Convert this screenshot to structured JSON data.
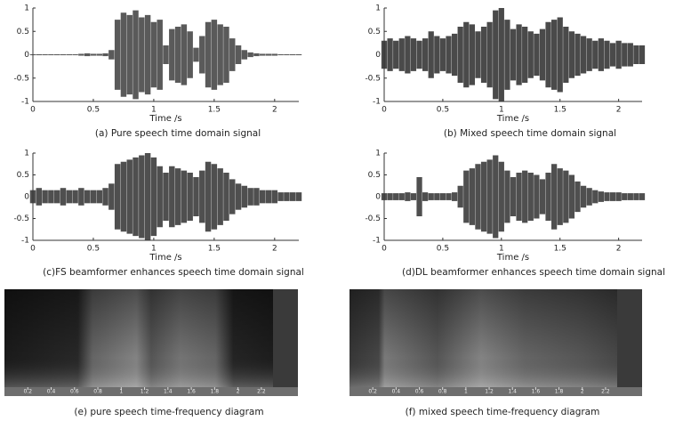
{
  "chart_data": [
    {
      "type": "waveform",
      "caption": "(a) Pure speech time domain signal",
      "xlabel": "Time /s",
      "color": "#5a5a5a",
      "xlim": [
        0,
        2.2
      ],
      "ylim": [
        -1,
        1
      ],
      "xticks": [
        0,
        0.5,
        1,
        1.5,
        2
      ],
      "yticks": [
        1,
        0.5,
        0,
        -0.5,
        -1
      ],
      "x": [
        0,
        0.05,
        0.1,
        0.15,
        0.2,
        0.25,
        0.3,
        0.35,
        0.4,
        0.45,
        0.5,
        0.55,
        0.6,
        0.65,
        0.7,
        0.75,
        0.8,
        0.85,
        0.9,
        0.95,
        1,
        1.05,
        1.1,
        1.15,
        1.2,
        1.25,
        1.3,
        1.35,
        1.4,
        1.45,
        1.5,
        1.55,
        1.6,
        1.65,
        1.7,
        1.75,
        1.8,
        1.85,
        1.9,
        1.95,
        2,
        2.05,
        2.1,
        2.15,
        2.2
      ],
      "values": [
        0.01,
        0.01,
        0.01,
        0.01,
        0.01,
        0.01,
        0.01,
        0.01,
        0.02,
        0.03,
        0.02,
        0.02,
        0.03,
        0.1,
        0.75,
        0.9,
        0.85,
        0.95,
        0.8,
        0.85,
        0.7,
        0.75,
        0.2,
        0.55,
        0.6,
        0.65,
        0.5,
        0.15,
        0.4,
        0.7,
        0.75,
        0.65,
        0.6,
        0.35,
        0.2,
        0.1,
        0.05,
        0.03,
        0.02,
        0.02,
        0.02,
        0.01,
        0.01,
        0.01,
        0.01
      ]
    },
    {
      "type": "waveform",
      "caption": "(b)  Mixed speech time domain signal",
      "xlabel": "Time /s",
      "color": "#4a4a4a",
      "xlim": [
        0,
        2.2
      ],
      "ylim": [
        -1,
        1
      ],
      "xticks": [
        0,
        0.5,
        1,
        1.5,
        2
      ],
      "yticks": [
        1,
        0.5,
        0,
        -0.5,
        -1
      ],
      "x": [
        0,
        0.05,
        0.1,
        0.15,
        0.2,
        0.25,
        0.3,
        0.35,
        0.4,
        0.45,
        0.5,
        0.55,
        0.6,
        0.65,
        0.7,
        0.75,
        0.8,
        0.85,
        0.9,
        0.95,
        1,
        1.05,
        1.1,
        1.15,
        1.2,
        1.25,
        1.3,
        1.35,
        1.4,
        1.45,
        1.5,
        1.55,
        1.6,
        1.65,
        1.7,
        1.75,
        1.8,
        1.85,
        1.9,
        1.95,
        2,
        2.05,
        2.1,
        2.15,
        2.2
      ],
      "values": [
        0.3,
        0.35,
        0.3,
        0.35,
        0.4,
        0.35,
        0.3,
        0.35,
        0.5,
        0.4,
        0.35,
        0.4,
        0.45,
        0.6,
        0.7,
        0.65,
        0.5,
        0.6,
        0.7,
        0.95,
        1,
        0.75,
        0.55,
        0.65,
        0.6,
        0.5,
        0.45,
        0.55,
        0.7,
        0.75,
        0.8,
        0.6,
        0.5,
        0.45,
        0.4,
        0.35,
        0.3,
        0.35,
        0.3,
        0.25,
        0.3,
        0.25,
        0.25,
        0.2,
        0.2
      ]
    },
    {
      "type": "waveform",
      "caption": "(c)FS beamformer enhances speech time domain signal",
      "xlabel": "Time /s",
      "color": "#4f4f4f",
      "xlim": [
        0,
        2.2
      ],
      "ylim": [
        -1,
        1
      ],
      "xticks": [
        0,
        0.5,
        1,
        1.5,
        2
      ],
      "yticks": [
        1,
        0.5,
        0,
        -0.5,
        -1
      ],
      "x": [
        0,
        0.05,
        0.1,
        0.15,
        0.2,
        0.25,
        0.3,
        0.35,
        0.4,
        0.45,
        0.5,
        0.55,
        0.6,
        0.65,
        0.7,
        0.75,
        0.8,
        0.85,
        0.9,
        0.95,
        1,
        1.05,
        1.1,
        1.15,
        1.2,
        1.25,
        1.3,
        1.35,
        1.4,
        1.45,
        1.5,
        1.55,
        1.6,
        1.65,
        1.7,
        1.75,
        1.8,
        1.85,
        1.9,
        1.95,
        2,
        2.05,
        2.1,
        2.15,
        2.2
      ],
      "values": [
        0.15,
        0.2,
        0.15,
        0.15,
        0.15,
        0.2,
        0.15,
        0.15,
        0.2,
        0.15,
        0.15,
        0.15,
        0.2,
        0.3,
        0.75,
        0.8,
        0.85,
        0.9,
        0.95,
        1,
        0.9,
        0.7,
        0.55,
        0.7,
        0.65,
        0.6,
        0.55,
        0.45,
        0.6,
        0.8,
        0.75,
        0.65,
        0.55,
        0.4,
        0.3,
        0.25,
        0.2,
        0.2,
        0.15,
        0.15,
        0.15,
        0.1,
        0.1,
        0.1,
        0.1
      ]
    },
    {
      "type": "waveform",
      "caption": "(d)DL beamformer enhances speech time domain signal",
      "xlabel": "Time /s",
      "color": "#4f4f4f",
      "xlim": [
        0,
        2.2
      ],
      "ylim": [
        -1,
        1
      ],
      "xticks": [
        0,
        0.5,
        1,
        1.5,
        2
      ],
      "yticks": [
        1,
        0.5,
        0,
        -0.5,
        -1
      ],
      "x": [
        0,
        0.05,
        0.1,
        0.15,
        0.2,
        0.25,
        0.3,
        0.35,
        0.4,
        0.45,
        0.5,
        0.55,
        0.6,
        0.65,
        0.7,
        0.75,
        0.8,
        0.85,
        0.9,
        0.95,
        1,
        1.05,
        1.1,
        1.15,
        1.2,
        1.25,
        1.3,
        1.35,
        1.4,
        1.45,
        1.5,
        1.55,
        1.6,
        1.65,
        1.7,
        1.75,
        1.8,
        1.85,
        1.9,
        1.95,
        2,
        2.05,
        2.1,
        2.15,
        2.2
      ],
      "values": [
        0.08,
        0.08,
        0.08,
        0.08,
        0.1,
        0.08,
        0.45,
        0.1,
        0.08,
        0.08,
        0.08,
        0.08,
        0.1,
        0.25,
        0.6,
        0.65,
        0.75,
        0.8,
        0.85,
        0.95,
        0.8,
        0.6,
        0.45,
        0.55,
        0.6,
        0.55,
        0.5,
        0.4,
        0.55,
        0.75,
        0.65,
        0.6,
        0.5,
        0.35,
        0.25,
        0.2,
        0.15,
        0.12,
        0.1,
        0.1,
        0.1,
        0.08,
        0.08,
        0.08,
        0.08
      ]
    },
    {
      "type": "spectrogram",
      "caption": "(e) pure speech time-frequency diagram",
      "xlim": [
        0,
        2.3
      ],
      "xticks": [
        0.2,
        0.4,
        0.6,
        0.8,
        1,
        1.2,
        1.4,
        1.6,
        1.8,
        2,
        2.2
      ]
    },
    {
      "type": "spectrogram",
      "caption": "(f) mixed speech time-frequency diagram",
      "xlim": [
        0,
        2.3
      ],
      "xticks": [
        0.2,
        0.4,
        0.6,
        0.8,
        1,
        1.2,
        1.4,
        1.6,
        1.8,
        2,
        2.2
      ]
    }
  ]
}
